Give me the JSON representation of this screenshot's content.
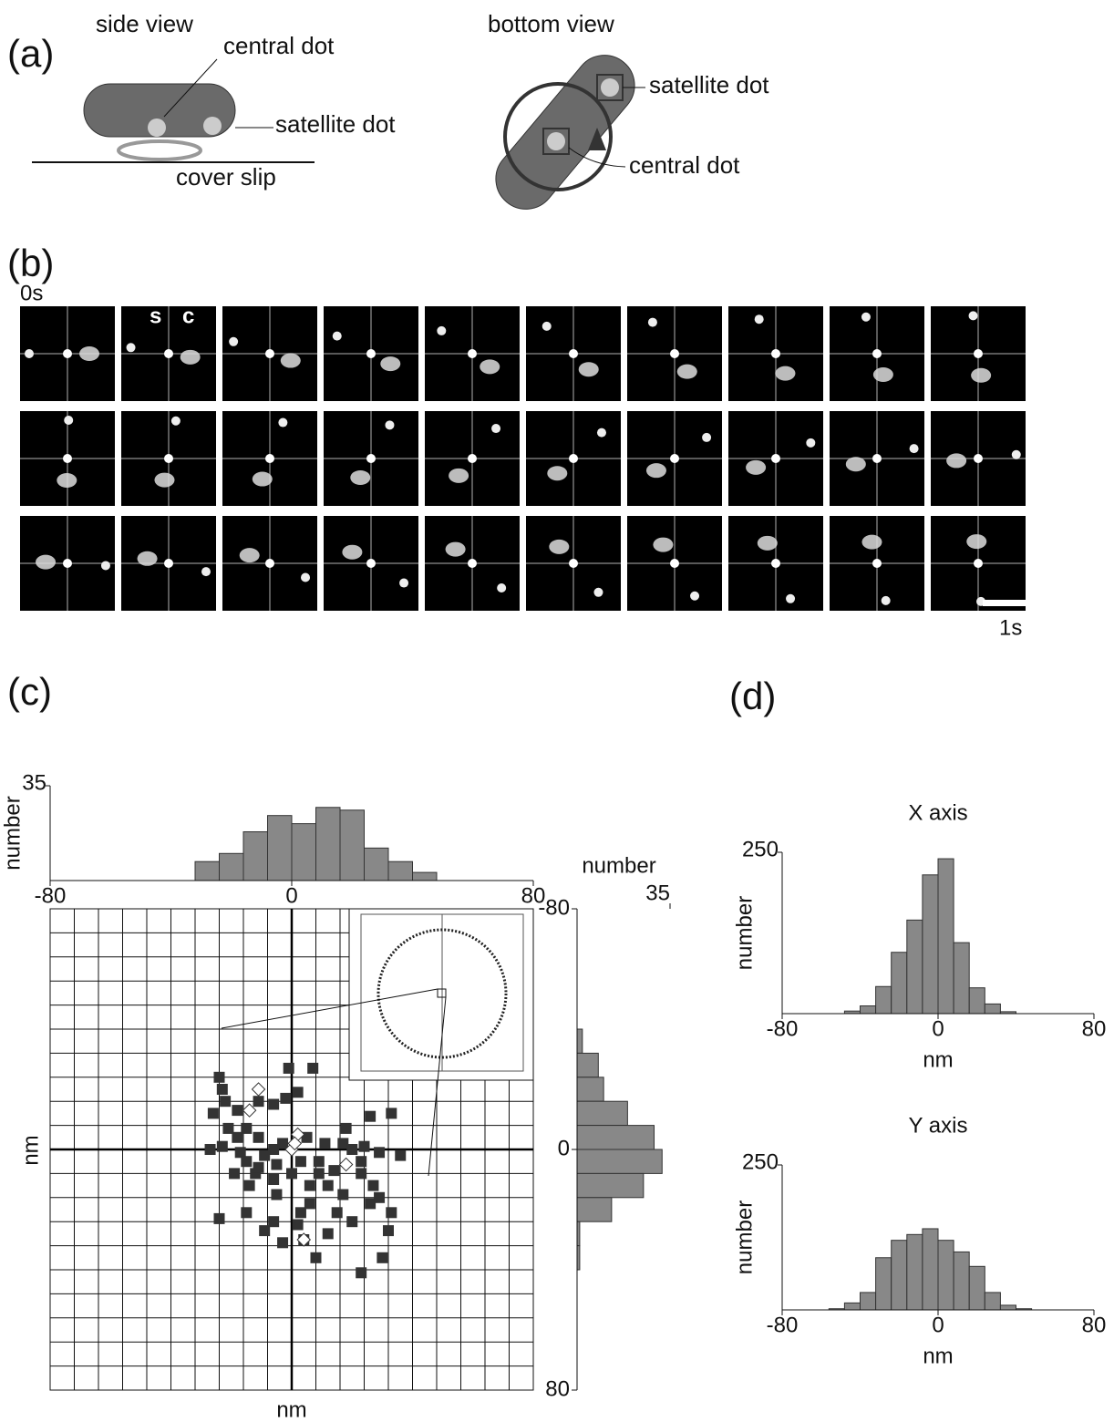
{
  "panel_a": {
    "label": "(a)",
    "side_view": {
      "title": "side view",
      "central": "central dot",
      "satellite": "satellite dot",
      "cover": "cover slip"
    },
    "bottom_view": {
      "title": "bottom view",
      "satellite": "satellite dot",
      "central": "central dot"
    }
  },
  "panel_b": {
    "label": "(b)",
    "start": "0s",
    "s": "s",
    "c": "c",
    "scale": "1s"
  },
  "panel_c_label": "(c)",
  "panel_d_label": "(d)",
  "chart_data": [
    {
      "type": "scatter",
      "xlabel": "nm",
      "ylabel": "nm",
      "xlim": [
        -80,
        80
      ],
      "ylim": [
        80,
        -80
      ],
      "gridlines": [
        -80,
        -72,
        -64,
        -56,
        -48,
        -40,
        -32,
        -24,
        -16,
        -8,
        0,
        8,
        16,
        24,
        32,
        40,
        48,
        56,
        64,
        72,
        80
      ],
      "series": [
        {
          "color": "#333333",
          "marker": "square",
          "x": [
            -24,
            -23,
            -1,
            7,
            -22,
            -26,
            -18,
            -11,
            -6,
            -2,
            2,
            -15,
            -11,
            -6,
            -27,
            -23,
            -17,
            -9,
            -3,
            5,
            11,
            17,
            20,
            24,
            29,
            33,
            26,
            18,
            23,
            27,
            33,
            36,
            9,
            12,
            6,
            3,
            -6,
            -9,
            -3,
            8,
            23,
            30,
            -24,
            -15,
            -14,
            -12,
            15,
            20,
            12,
            2,
            -5,
            9,
            14,
            0,
            3,
            -19,
            -11,
            -5,
            26,
            29,
            17,
            6,
            -6,
            -18,
            -21,
            23,
            32,
            4,
            -15
          ],
          "values": [
            -24,
            -20,
            -27,
            -27,
            -16,
            -12,
            -13,
            -16,
            -15,
            -17,
            -19,
            -7,
            -4,
            0,
            0,
            -1,
            1,
            2,
            -2,
            -4,
            -2,
            -2,
            0,
            -1,
            1,
            -12,
            -11,
            -7,
            8,
            12,
            21,
            2,
            8,
            12,
            18,
            21,
            24,
            27,
            31,
            36,
            41,
            36,
            23,
            21,
            12,
            8,
            21,
            24,
            28,
            25,
            15,
            4,
            7,
            8,
            4,
            8,
            6,
            5,
            18,
            16,
            15,
            12,
            10,
            -4,
            -7,
            4,
            27,
            30,
            4
          ]
        },
        {
          "color": "#ffffff",
          "marker": "diamond",
          "x": [
            -11,
            -14,
            2,
            0,
            1,
            18,
            4
          ],
          "values": [
            -20,
            -13,
            -5,
            0,
            -2,
            5,
            30
          ]
        }
      ]
    },
    {
      "type": "histogram",
      "orientation": "vertical",
      "ylabel": "number",
      "color": "#888888",
      "xlim": [
        -80,
        80
      ],
      "xticks": [
        -80,
        0,
        80
      ],
      "ylim": [
        0,
        35
      ],
      "yticks": [
        35
      ],
      "bins": [
        -32,
        -24,
        -16,
        -8,
        0,
        8,
        16,
        24,
        32,
        40,
        48
      ],
      "values": [
        7,
        10,
        18,
        24,
        21,
        27,
        26,
        12,
        7,
        3
      ]
    },
    {
      "type": "histogram",
      "orientation": "horizontal",
      "xlabel": "number",
      "color": "#888888",
      "xlim": [
        0,
        35
      ],
      "xticks": [
        35
      ],
      "ylim": [
        80,
        -80
      ],
      "yticks": [
        -80,
        0,
        80
      ],
      "bins": [
        -40,
        -32,
        -24,
        -16,
        -8,
        0,
        8,
        16,
        24,
        32,
        40
      ],
      "values": [
        2,
        8,
        10,
        19,
        29,
        32,
        25,
        13,
        1,
        1
      ]
    },
    {
      "type": "histogram",
      "orientation": "vertical",
      "title": "X axis",
      "xlabel": "nm",
      "ylabel": "number",
      "color": "#888888",
      "xlim": [
        -80,
        80
      ],
      "xticks": [
        -80,
        0,
        80
      ],
      "ylim": [
        0,
        250
      ],
      "yticks": [
        250
      ],
      "bins": [
        -48,
        -40,
        -32,
        -24,
        -16,
        -8,
        0,
        8,
        16,
        24,
        32,
        40
      ],
      "values": [
        4,
        12,
        42,
        95,
        145,
        215,
        240,
        110,
        40,
        15,
        3
      ]
    },
    {
      "type": "histogram",
      "orientation": "vertical",
      "title": "Y axis",
      "xlabel": "nm",
      "ylabel": "number",
      "color": "#888888",
      "xlim": [
        -80,
        80
      ],
      "xticks": [
        -80,
        0,
        80
      ],
      "ylim": [
        0,
        250
      ],
      "yticks": [
        250
      ],
      "bins": [
        -56,
        -48,
        -40,
        -32,
        -24,
        -16,
        -8,
        0,
        8,
        16,
        24,
        32,
        40,
        48
      ],
      "values": [
        2,
        12,
        30,
        90,
        120,
        130,
        140,
        120,
        100,
        75,
        30,
        8,
        2
      ]
    }
  ]
}
